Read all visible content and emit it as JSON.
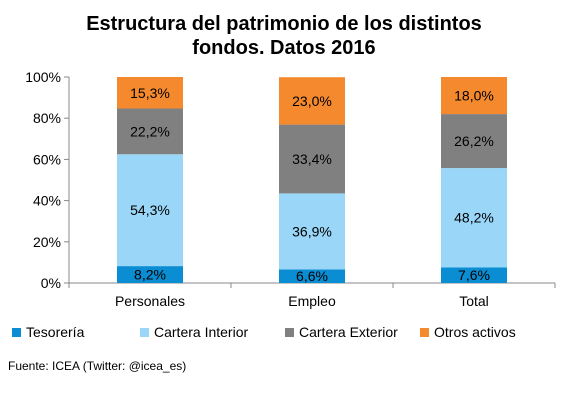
{
  "chart_data": {
    "type": "bar",
    "stacked": true,
    "title_lines": [
      "Estructura del patrimonio  de los distintos",
      "fondos. Datos 2016"
    ],
    "categories": [
      "Personales",
      "Empleo",
      "Total"
    ],
    "ylim": [
      0,
      100
    ],
    "y_ticks": [
      "0%",
      "20%",
      "40%",
      "60%",
      "80%",
      "100%"
    ],
    "y_tick_values": [
      0,
      20,
      40,
      60,
      80,
      100
    ],
    "grid": false,
    "legend_position": "bottom",
    "series": [
      {
        "name": "Tesorería",
        "color": "#0a8dd2",
        "values": [
          8.2,
          6.6,
          7.6
        ],
        "labels": [
          "8,2%",
          "6,6%",
          "7,6%"
        ]
      },
      {
        "name": "Cartera Interior",
        "color": "#99d6f7",
        "values": [
          54.3,
          36.9,
          48.2
        ],
        "labels": [
          "54,3%",
          "36,9%",
          "48,2%"
        ]
      },
      {
        "name": "Cartera Exterior",
        "color": "#808080",
        "values": [
          22.2,
          33.4,
          26.2
        ],
        "labels": [
          "22,2%",
          "33,4%",
          "26,2%"
        ]
      },
      {
        "name": "Otros activos",
        "color": "#f5892e",
        "values": [
          15.3,
          23.0,
          18.0
        ],
        "labels": [
          "15,3%",
          "23,0%",
          "18,0%"
        ]
      }
    ]
  },
  "source": "Fuente: ICEA (Twitter: @icea_es)"
}
